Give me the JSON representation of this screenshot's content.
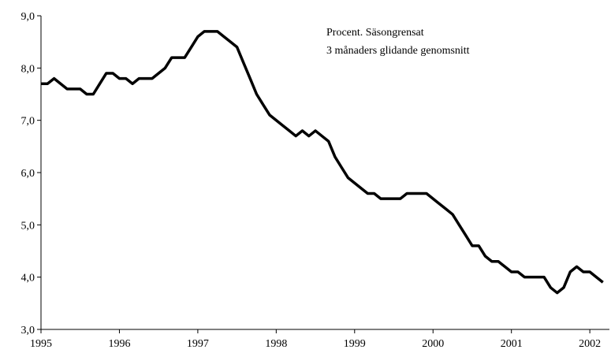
{
  "chart_data": {
    "type": "line",
    "annotation": [
      "Procent. Säsongrensat",
      "3 månaders glidande genomsnitt"
    ],
    "x": [
      1995,
      1995.083,
      1995.167,
      1995.25,
      1995.333,
      1995.417,
      1995.5,
      1995.583,
      1995.667,
      1995.75,
      1995.833,
      1995.917,
      1996,
      1996.083,
      1996.167,
      1996.25,
      1996.333,
      1996.417,
      1996.5,
      1996.583,
      1996.667,
      1996.75,
      1996.833,
      1996.917,
      1997,
      1997.083,
      1997.167,
      1997.25,
      1997.333,
      1997.417,
      1997.5,
      1997.583,
      1997.667,
      1997.75,
      1997.833,
      1997.917,
      1998,
      1998.083,
      1998.167,
      1998.25,
      1998.333,
      1998.417,
      1998.5,
      1998.583,
      1998.667,
      1998.75,
      1998.833,
      1998.917,
      1999,
      1999.083,
      1999.167,
      1999.25,
      1999.333,
      1999.417,
      1999.5,
      1999.583,
      1999.667,
      1999.75,
      1999.833,
      1999.917,
      2000,
      2000.083,
      2000.167,
      2000.25,
      2000.333,
      2000.417,
      2000.5,
      2000.583,
      2000.667,
      2000.75,
      2000.833,
      2000.917,
      2001,
      2001.083,
      2001.167,
      2001.25,
      2001.333,
      2001.417,
      2001.5,
      2001.583,
      2001.667,
      2001.75,
      2001.833,
      2001.917,
      2002,
      2002.083,
      2002.167
    ],
    "series": [
      {
        "color": "#000000",
        "values": [
          7.7,
          7.7,
          7.8,
          7.7,
          7.6,
          7.6,
          7.6,
          7.5,
          7.5,
          7.7,
          7.9,
          7.9,
          7.8,
          7.8,
          7.7,
          7.8,
          7.8,
          7.8,
          7.9,
          8.0,
          8.2,
          8.2,
          8.2,
          8.4,
          8.6,
          8.7,
          8.7,
          8.7,
          8.6,
          8.5,
          8.4,
          8.1,
          7.8,
          7.5,
          7.3,
          7.1,
          7.0,
          6.9,
          6.8,
          6.7,
          6.8,
          6.7,
          6.8,
          6.7,
          6.6,
          6.3,
          6.1,
          5.9,
          5.8,
          5.7,
          5.6,
          5.6,
          5.5,
          5.5,
          5.5,
          5.5,
          5.6,
          5.6,
          5.6,
          5.6,
          5.5,
          5.4,
          5.3,
          5.2,
          5.0,
          4.8,
          4.6,
          4.6,
          4.4,
          4.3,
          4.3,
          4.2,
          4.1,
          4.1,
          4.0,
          4.0,
          4.0,
          4.0,
          3.8,
          3.7,
          3.8,
          4.1,
          4.2,
          4.1,
          4.1,
          4.0,
          3.9
        ]
      }
    ],
    "xlim": [
      1995,
      2002.25
    ],
    "xticks": [
      1995,
      1996,
      1997,
      1998,
      1999,
      2000,
      2001,
      2002
    ],
    "ylim": [
      3,
      9
    ],
    "yticks": [
      {
        "value": 3,
        "label": "3,0"
      },
      {
        "value": 4,
        "label": "4,0"
      },
      {
        "value": 5,
        "label": "5,0"
      },
      {
        "value": 6,
        "label": "6,0"
      },
      {
        "value": 7,
        "label": "7,0"
      },
      {
        "value": 8,
        "label": "8,0"
      },
      {
        "value": 9,
        "label": "9,0"
      }
    ]
  }
}
